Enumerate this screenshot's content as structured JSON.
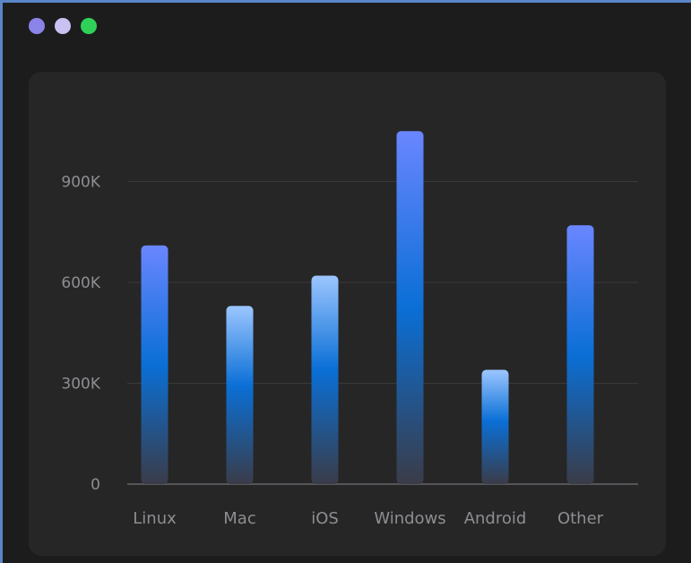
{
  "window": {
    "traffic_lights": [
      {
        "name": "close",
        "color": "#8a84e8"
      },
      {
        "name": "minimize",
        "color": "#c9c1f2"
      },
      {
        "name": "zoom",
        "color": "#2fd158"
      }
    ]
  },
  "colors": {
    "background": "#1c1c1d",
    "panel": "#262627",
    "bar_top": "#6a86ff",
    "bar_mid": "#0a6fd6",
    "bar_bottom": "#3a3c48",
    "bar_light_top": "#9cc6ff",
    "text": "#8e8e92",
    "grid": "#3a3a3c"
  },
  "chart_data": {
    "type": "bar",
    "categories": [
      "Linux",
      "Mac",
      "iOS",
      "Windows",
      "Android",
      "Other"
    ],
    "values": [
      710000,
      530000,
      620000,
      1050000,
      340000,
      770000
    ],
    "y_ticks": [
      {
        "value": 0,
        "label": "0"
      },
      {
        "value": 300000,
        "label": "300K"
      },
      {
        "value": 600000,
        "label": "600K"
      },
      {
        "value": 900000,
        "label": "900K"
      }
    ],
    "ylim": [
      0,
      1200000
    ],
    "grid": true,
    "legend": "none",
    "title": "",
    "xlabel": "",
    "ylabel": ""
  }
}
